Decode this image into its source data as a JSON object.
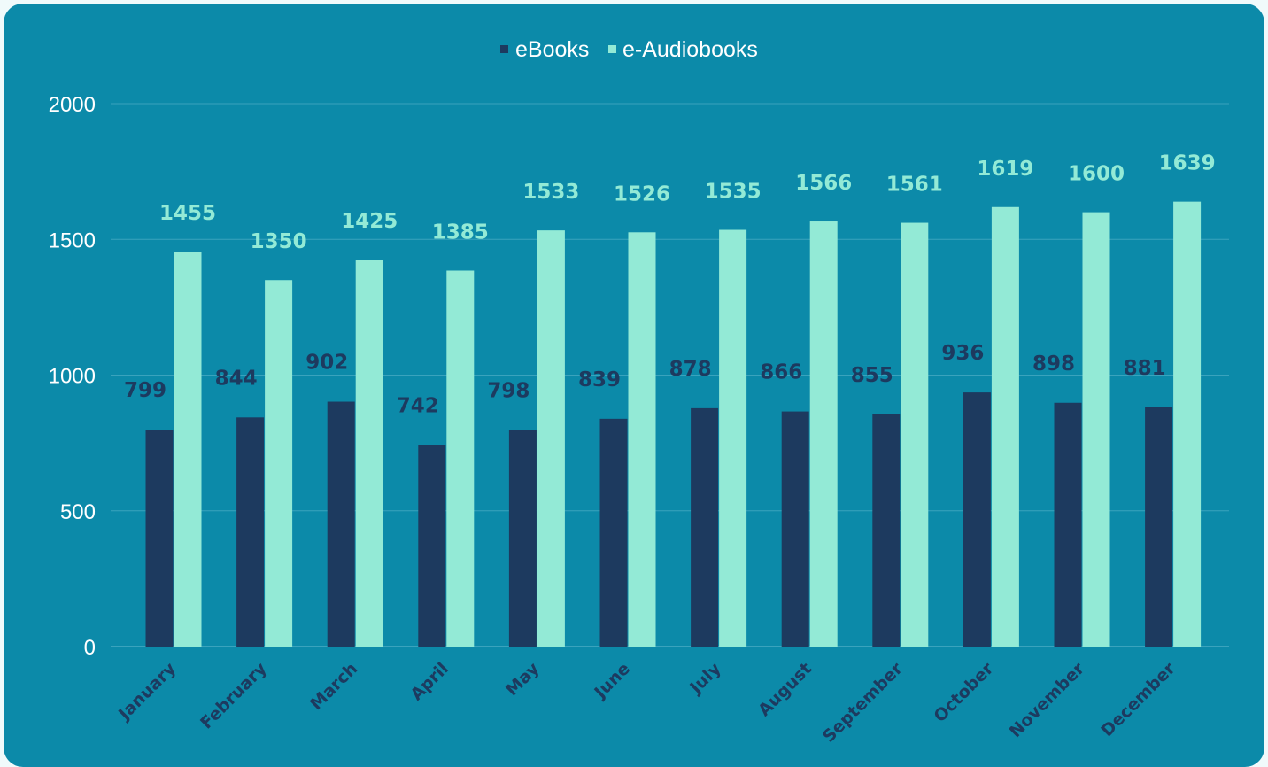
{
  "colors": {
    "panel_background": "#0c8aa9",
    "gridline": "#3aa3bd",
    "axis_text": "#ffffff",
    "category_text": "#1d3a5f",
    "ebooks": "#1d3a5f",
    "audiobooks": "#93ead6"
  },
  "chart_data": {
    "type": "bar",
    "categories": [
      "January",
      "February",
      "March",
      "April",
      "May",
      "June",
      "July",
      "August",
      "September",
      "October",
      "November",
      "December"
    ],
    "series": [
      {
        "name": "eBooks",
        "values": [
          799,
          844,
          902,
          742,
          798,
          839,
          878,
          866,
          855,
          936,
          898,
          881
        ]
      },
      {
        "name": "e-Audiobooks",
        "values": [
          1455,
          1350,
          1425,
          1385,
          1533,
          1526,
          1535,
          1566,
          1561,
          1619,
          1600,
          1639
        ]
      }
    ],
    "title": "",
    "xlabel": "",
    "ylabel": "",
    "ylim": [
      0,
      2000
    ],
    "yticks": [
      "0",
      "500",
      "1000",
      "1500",
      "2000"
    ],
    "grid": true,
    "legend_position": "top-center",
    "data_labels": true
  }
}
